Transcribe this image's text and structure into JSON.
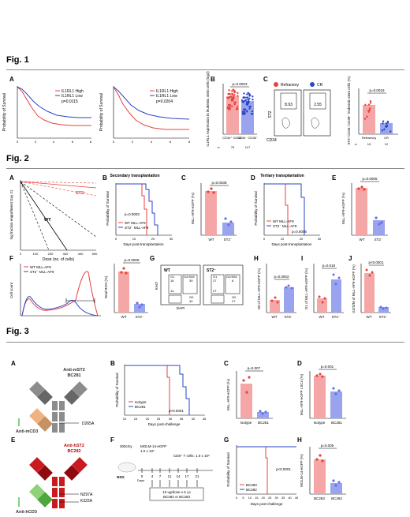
{
  "fig1": {
    "title": "Fig. 1",
    "A": {
      "label": "A",
      "left": {
        "ylabel": "Probability of Survival",
        "legend": [
          "IL1RL1 High",
          "IL1RL1 Low"
        ],
        "p": "p=0.0115",
        "xticks": [
          "0",
          "2",
          "4",
          "6",
          "8"
        ],
        "yticks": [
          "0",
          "20",
          "40",
          "60",
          "80",
          "100"
        ]
      },
      "right": {
        "ylabel": "Probability of Survival",
        "legend": [
          "IL1RL1 High",
          "IL1RL1 Low"
        ],
        "p": "p=0.0204",
        "xticks": [
          "0",
          "2",
          "4",
          "6",
          "8"
        ],
        "yticks": [
          "0",
          "20",
          "40",
          "60",
          "80",
          "100"
        ]
      }
    },
    "B": {
      "label": "B",
      "ylabel": "IL1RL1 expression in leukemic stem cells (log2)",
      "p": "p=0.0003",
      "groups": [
        "CD34⁺ CD38⁻",
        "CD34⁻ CD38⁻"
      ],
      "n_label": "n:",
      "n": [
        "75",
        "117"
      ],
      "yticks": [
        "0",
        "5",
        "10",
        "15"
      ]
    },
    "C": {
      "label": "C",
      "legend": [
        "Refractory",
        "CR"
      ],
      "flow": [
        "8.93",
        "2.55"
      ],
      "x_axis": "CD34",
      "y_axis": "ST2",
      "bar_ylabel": "ST2⁺CD34⁺CD38⁻ leukemic stem cells (%)",
      "p": "p=0.0018",
      "groups": [
        "Refractory",
        "CR"
      ],
      "n_label": "n:",
      "n": [
        "10",
        "12"
      ]
    }
  },
  "fig2": {
    "title": "Fig. 2",
    "A": {
      "label": "A",
      "ylabel": "log fraction engraftment Day 21",
      "xlabel": "Dose (no. of cells)",
      "xticks": [
        "0",
        "100",
        "200",
        "300",
        "400",
        "500"
      ],
      "yticks": [
        "0",
        "-1",
        "-2",
        "-3",
        "-4",
        "-5"
      ],
      "series": [
        "ST2⁻",
        "WT"
      ]
    },
    "B": {
      "label": "B",
      "title": "Secondary transplantation",
      "ylabel": "Probability of Survival",
      "xlabel": "Days post-transplantation",
      "p": "p=0.0003",
      "legend": [
        "WT MLL-AF9",
        "ST2⁻ MLL-AF9"
      ],
      "xticks": [
        "0",
        "10",
        "20",
        "30"
      ]
    },
    "C": {
      "label": "C",
      "ylabel": "MLL-AF9-eGFP (%)",
      "p": "p=0.0038",
      "groups": [
        "WT",
        "ST2⁻"
      ]
    },
    "D": {
      "label": "D",
      "title": "Tertiary transplantation",
      "ylabel": "Probability of Survival",
      "xlabel": "Days post-transplantation",
      "p": "p=0.0005",
      "legend": [
        "WT MLL-AF9",
        "ST2⁻ MLL-AF9"
      ],
      "xticks": [
        "0",
        "10",
        "20",
        "30"
      ]
    },
    "E": {
      "label": "E",
      "ylabel": "MLL-AF9-eGFP (%)",
      "p": "p=0.0005",
      "groups": [
        "WT",
        "ST2⁻"
      ]
    },
    "F": {
      "label": "F",
      "ylabel": "Cell count",
      "legend": [
        "WT MLL-AF9",
        "ST2⁻ MLL-AF9"
      ],
      "bar_ylabel": "Total ROS (%)",
      "p": "p=0.0008",
      "groups": [
        "WT",
        "ST2⁻"
      ]
    },
    "G": {
      "label": "G",
      "panels": [
        {
          "name": "WT",
          "g1": "G1",
          "g1v": "16",
          "g2": "G2/S/M",
          "g2v": "39",
          "g0v": "14",
          "g0": "G0",
          "g0b": "44"
        },
        {
          "name": "ST2⁻",
          "g1": "G1",
          "g1v": "27",
          "g2": "G2/S/M",
          "g2v": "6",
          "g0v": "27",
          "g0": "G0",
          "g0b": "27"
        }
      ],
      "x_axis": "DAPI",
      "y_axis": "Ki-67"
    },
    "H": {
      "label": "H",
      "ylabel": "G0 of MLL-AF9-eGFP (%)",
      "p": "p=0.0002",
      "groups": [
        "WT",
        "ST2⁻"
      ]
    },
    "I": {
      "label": "I",
      "ylabel": "G1 of MLL-AF9-eGFP (%)",
      "p": "p=0.018",
      "groups": [
        "WT",
        "ST2⁻"
      ]
    },
    "J": {
      "label": "J",
      "ylabel": "G2/S/M of MLL-AF9-eGFP (%)",
      "p": "p<0.0001",
      "groups": [
        "WT",
        "ST2⁻"
      ]
    }
  },
  "fig3": {
    "title": "Fig. 3",
    "A": {
      "label": "A",
      "top": "Anti-mST2",
      "top2": "BC281",
      "bottom": "Anti-mCD3",
      "mut": "D265A"
    },
    "B": {
      "label": "B",
      "ylabel": "Probability of Survival",
      "xlabel": "Days post-challenge",
      "p": "p<0.0001",
      "legend": [
        "Isotype",
        "BC281"
      ],
      "xticks": [
        "10",
        "15",
        "20",
        "25",
        "30",
        "35",
        "40",
        "45"
      ]
    },
    "C": {
      "label": "C",
      "ylabel": "MLL-AF9-eGFP (%)",
      "p": "p=0.007",
      "groups": [
        "Isotype",
        "BC281"
      ]
    },
    "D": {
      "label": "D",
      "ylabel": "MLL-AF9-eGFP LSCs (%)",
      "p": "p=0.001",
      "groups": [
        "Isotype",
        "BC281"
      ]
    },
    "E": {
      "label": "E",
      "top": "Anti-hST2",
      "top2": "BC282",
      "bottom": "Anti-hCD3",
      "mut1": "N297A",
      "mut2": "K322A"
    },
    "F": {
      "label": "F",
      "dose": "300cGy",
      "cells": "MOLM-14-eGFP",
      "cells2": "1.0 x 10⁵",
      "tcells": "CD8⁺ T cells: 1.0 x 10⁶",
      "mouse": "NSG",
      "days_label": "Days",
      "days": [
        "0",
        "4",
        "7",
        "11",
        "14",
        "17",
        "21"
      ],
      "drug": "10 ug/dose x 6 i.p",
      "drug2": "BC282 or BC283"
    },
    "G": {
      "label": "G",
      "ylabel": "Probability of Survival",
      "xlabel": "Days post-challenge",
      "p": "p<0.0001",
      "legend": [
        "BC283",
        "BC282"
      ],
      "xticks": [
        "0",
        "5",
        "10",
        "15",
        "20",
        "25",
        "30",
        "35",
        "40",
        "45"
      ]
    },
    "H": {
      "label": "H",
      "ylabel": "MOLM-14-eGFP (%)",
      "p": "p=0.005",
      "groups": [
        "BC283",
        "BC282"
      ]
    }
  },
  "colors": {
    "red": "#e8403f",
    "blue": "#2a45c8",
    "pink": "#f4a7a6",
    "lavender": "#9aa4ee",
    "grey": "#8c8c8c",
    "dark": "#666666",
    "orange": "#f2b27f",
    "green": "#8fd27a",
    "darkred": "#b50d12"
  }
}
